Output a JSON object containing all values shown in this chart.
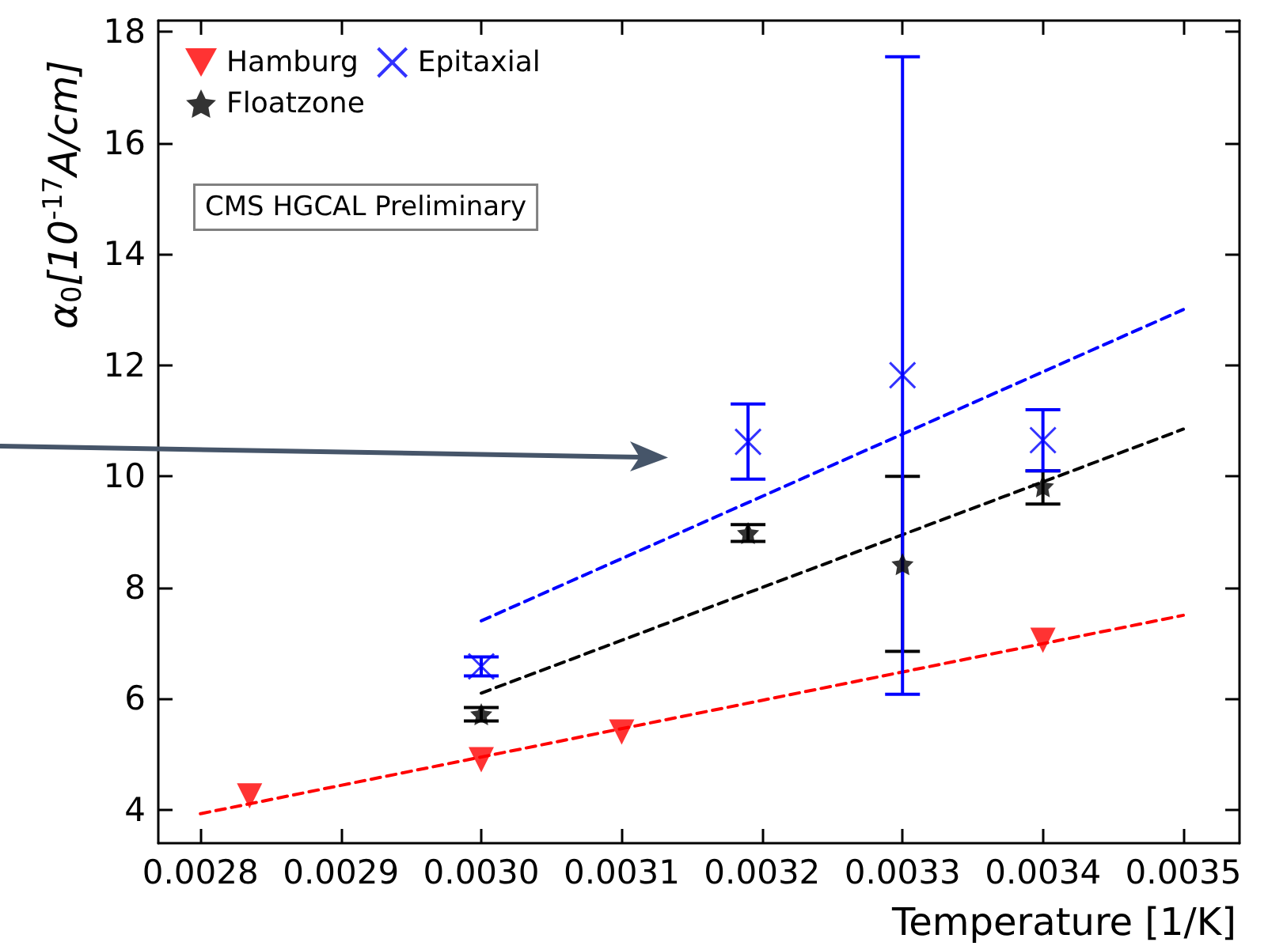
{
  "chart_data": {
    "type": "scatter",
    "xlabel": "Temperature [1/K]",
    "ylabel": "α$_{0}$[10$^{-17}$A/cm]",
    "xlim": [
      0.00277,
      0.00354
    ],
    "ylim": [
      3.4,
      18.2
    ],
    "xticks": [
      0.0028,
      0.0029,
      {
        "value": 0.003,
        "label": "0.0030"
      },
      0.0031,
      0.0032,
      0.0033,
      0.0034,
      0.0035
    ],
    "yticks": [
      4,
      6,
      8,
      10,
      12,
      14,
      16,
      18
    ],
    "grid": false,
    "legend": "top left",
    "annotations": [
      "CMS HGCAL Preliminary"
    ],
    "series": [
      {
        "name": "Hamburg",
        "marker": "triangle",
        "color": "#ff0000",
        "x": [
          0.002835,
          0.003,
          0.0031,
          0.0034
        ],
        "values": [
          4.25,
          4.9,
          5.4,
          7.05
        ]
      },
      {
        "name": "Floatzone",
        "marker": "star",
        "color": "#000000",
        "x": [
          0.003,
          0.00319,
          0.0033,
          0.0034
        ],
        "values": [
          5.72,
          8.98,
          8.42,
          9.82
        ],
        "errors": [
          0.12,
          0.15,
          [
            6.85,
            10.0
          ],
          [
            9.5,
            10.1
          ]
        ]
      },
      {
        "name": "Epitaxial",
        "marker": "cross",
        "color": "#0000ff",
        "x": [
          0.003,
          0.00319,
          0.0033,
          0.0034
        ],
        "values": [
          6.58,
          10.62,
          11.82,
          10.65
        ],
        "errors": [
          0.17,
          [
            9.95,
            11.3
          ],
          [
            6.08,
            17.55
          ],
          [
            10.1,
            11.2
          ]
        ]
      },
      {
        "type": "line",
        "marker": "none",
        "line_style": "dashed",
        "color": "#ff0000",
        "x": [
          0.0028,
          0.0035
        ],
        "values": [
          3.93,
          7.5
        ]
      },
      {
        "type": "line",
        "marker": "none",
        "line_style": "dashed",
        "color": "#000000",
        "x": [
          0.003,
          0.0035
        ],
        "values": [
          6.1,
          10.85
        ]
      },
      {
        "type": "line",
        "marker": "none",
        "line_style": "dashed",
        "color": "#0000ff",
        "x": [
          0.003,
          0.0035
        ],
        "values": [
          7.4,
          13.0
        ]
      }
    ]
  }
}
